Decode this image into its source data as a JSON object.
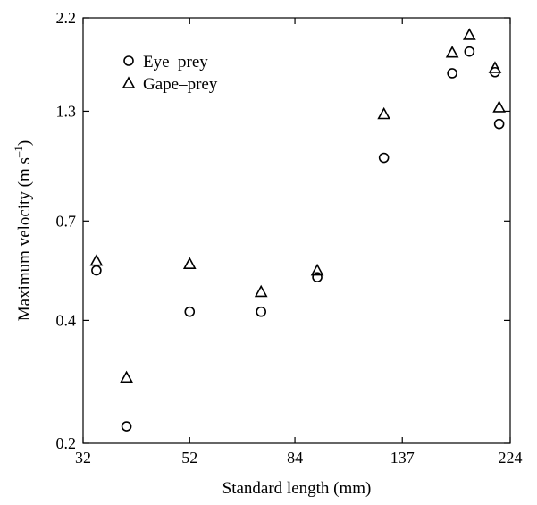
{
  "chart_data": {
    "type": "scatter",
    "title": "",
    "xlabel": "Standard length (mm)",
    "ylabel_main": "Maximum velocity (m s",
    "ylabel_exp": "–1",
    "ylabel_close": ")",
    "x_scale": "log",
    "y_scale": "log",
    "xlim": [
      32,
      224
    ],
    "ylim": [
      0.2,
      2.2
    ],
    "x_ticks": [
      32,
      52,
      84,
      137,
      224
    ],
    "x_tick_labels": [
      "32",
      "52",
      "84",
      "137",
      "224"
    ],
    "y_ticks": [
      0.2,
      0.4,
      0.7,
      1.3,
      2.2
    ],
    "y_tick_labels": [
      "0.2",
      "0.4",
      "0.7",
      "1.3",
      "2.2"
    ],
    "grid": false,
    "legend_position": "top-left",
    "series": [
      {
        "name": "Eye–prey",
        "marker": "circle",
        "x": [
          34,
          39,
          52,
          72,
          93,
          126,
          172,
          186,
          209,
          213
        ],
        "y": [
          0.53,
          0.22,
          0.42,
          0.42,
          0.51,
          1.0,
          1.61,
          1.82,
          1.62,
          1.21
        ]
      },
      {
        "name": "Gape–prey",
        "marker": "triangle",
        "x": [
          34,
          39,
          52,
          72,
          93,
          126,
          172,
          186,
          209,
          213
        ],
        "y": [
          0.56,
          0.29,
          0.55,
          0.47,
          0.53,
          1.28,
          1.81,
          2.0,
          1.66,
          1.33
        ]
      }
    ]
  }
}
